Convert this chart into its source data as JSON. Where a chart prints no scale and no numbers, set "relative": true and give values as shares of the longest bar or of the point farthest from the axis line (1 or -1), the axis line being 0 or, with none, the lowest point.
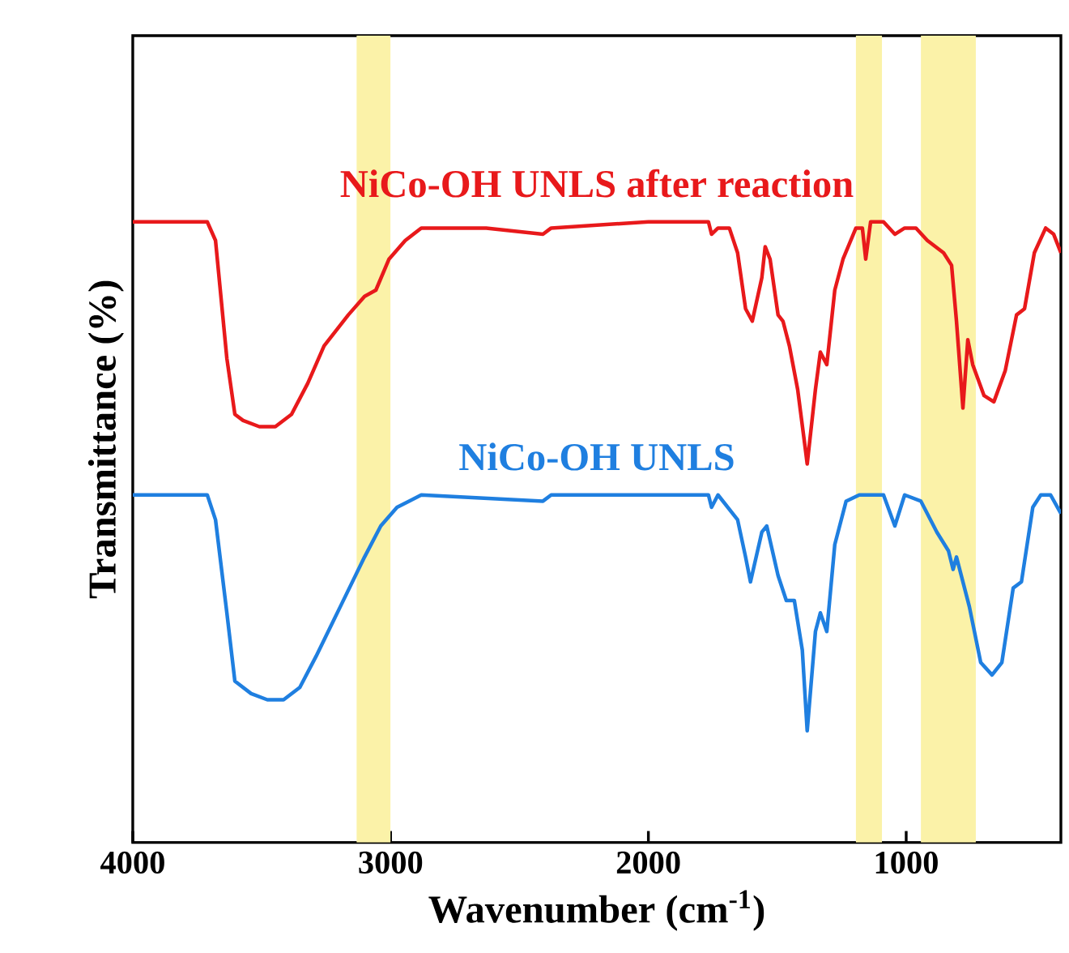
{
  "chart_data": {
    "type": "line",
    "xlabel": "Wavenumber (cm$^{-1}$)",
    "ylabel": "Transmittance (%)",
    "relative": true,
    "tick_labels": "x",
    "xlim": [
      4000,
      400
    ],
    "xticks": [
      4000,
      3000,
      2000,
      1000
    ],
    "bands": [
      {
        "axis": "x",
        "from": 3132,
        "to": 3000,
        "color": "#fbf2a8"
      },
      {
        "axis": "x",
        "from": 1195,
        "to": 1094,
        "color": "#fbf2a8"
      },
      {
        "axis": "x",
        "from": 943,
        "to": 730,
        "color": "#fbf2a8"
      }
    ],
    "series": [
      {
        "name": "NiCo-OH UNLS after reaction",
        "color": "#e8191b",
        "x": [
          4000,
          3711,
          3679,
          3635,
          3604,
          3572,
          3509,
          3447,
          3384,
          3321,
          3258,
          3164,
          3101,
          3057,
          3006,
          2943,
          2881,
          2629,
          2409,
          2377,
          2000,
          1767,
          1755,
          1730,
          1686,
          1654,
          1623,
          1597,
          1560,
          1547,
          1528,
          1497,
          1478,
          1453,
          1421,
          1390,
          1384,
          1352,
          1333,
          1308,
          1277,
          1245,
          1195,
          1170,
          1157,
          1138,
          1088,
          1044,
          1006,
          962,
          918,
          855,
          824,
          805,
          780,
          761,
          742,
          698,
          660,
          616,
          572,
          541,
          503,
          459,
          428,
          400
        ],
        "values": [
          1.0,
          1.0,
          0.97,
          0.78,
          0.69,
          0.68,
          0.67,
          0.67,
          0.69,
          0.74,
          0.8,
          0.85,
          0.88,
          0.89,
          0.94,
          0.97,
          0.99,
          0.99,
          0.98,
          0.99,
          1.0,
          1.0,
          0.98,
          0.99,
          0.99,
          0.95,
          0.86,
          0.84,
          0.91,
          0.96,
          0.94,
          0.85,
          0.84,
          0.8,
          0.73,
          0.63,
          0.61,
          0.73,
          0.79,
          0.77,
          0.89,
          0.94,
          0.99,
          0.99,
          0.94,
          1.0,
          1.0,
          0.98,
          0.99,
          0.99,
          0.97,
          0.95,
          0.93,
          0.84,
          0.7,
          0.81,
          0.77,
          0.72,
          0.71,
          0.76,
          0.85,
          0.86,
          0.95,
          0.99,
          0.98,
          0.95
        ]
      },
      {
        "name": "NiCo-OH UNLS",
        "color": "#1f7fe0",
        "x": [
          4000,
          3711,
          3679,
          3635,
          3604,
          3541,
          3478,
          3415,
          3352,
          3289,
          3195,
          3101,
          3038,
          2975,
          2881,
          2409,
          2377,
          2000,
          1767,
          1755,
          1730,
          1654,
          1623,
          1604,
          1560,
          1541,
          1497,
          1465,
          1434,
          1403,
          1384,
          1352,
          1333,
          1308,
          1277,
          1233,
          1182,
          1088,
          1044,
          1006,
          943,
          881,
          836,
          818,
          805,
          755,
          711,
          667,
          629,
          585,
          553,
          509,
          478,
          440,
          400
        ],
        "values": [
          0.56,
          0.56,
          0.52,
          0.37,
          0.26,
          0.24,
          0.23,
          0.23,
          0.25,
          0.3,
          0.38,
          0.46,
          0.51,
          0.54,
          0.56,
          0.55,
          0.56,
          0.56,
          0.56,
          0.54,
          0.56,
          0.52,
          0.46,
          0.42,
          0.5,
          0.51,
          0.43,
          0.39,
          0.39,
          0.31,
          0.18,
          0.34,
          0.37,
          0.34,
          0.48,
          0.55,
          0.56,
          0.56,
          0.51,
          0.56,
          0.55,
          0.5,
          0.47,
          0.44,
          0.46,
          0.38,
          0.29,
          0.27,
          0.29,
          0.41,
          0.42,
          0.54,
          0.56,
          0.56,
          0.53
        ]
      }
    ]
  }
}
